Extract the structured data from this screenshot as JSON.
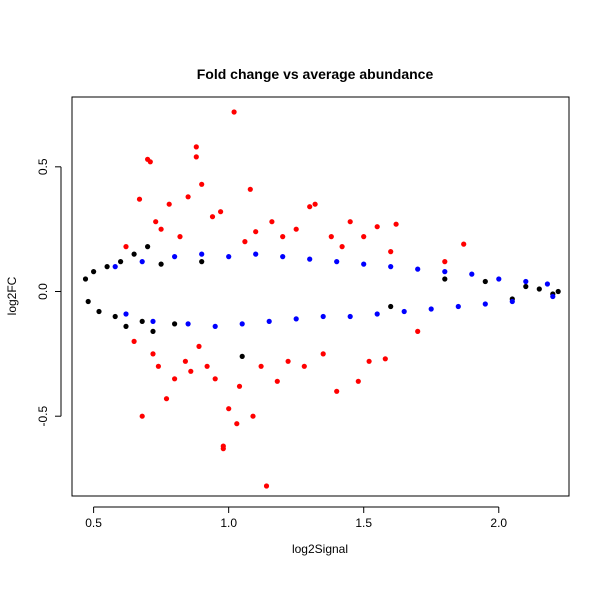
{
  "chart_data": {
    "type": "scatter",
    "title": "Fold change vs average abundance",
    "xlabel": "log2Signal",
    "ylabel": "log2FC",
    "xlim": [
      0.42,
      2.26
    ],
    "ylim": [
      -0.82,
      0.78
    ],
    "xticks": [
      0.5,
      1.0,
      1.5,
      2.0
    ],
    "xtick_labels": [
      "0.5",
      "1.0",
      "1.5",
      "2.0"
    ],
    "yticks": [
      -0.5,
      0.0,
      0.5
    ],
    "ytick_labels": [
      "-0.5",
      "0.0",
      "0.5"
    ],
    "grid": false,
    "series": [
      {
        "color": "#000000",
        "points": [
          [
            0.47,
            0.05
          ],
          [
            0.48,
            -0.04
          ],
          [
            0.5,
            0.08
          ],
          [
            0.52,
            -0.08
          ],
          [
            0.55,
            0.1
          ],
          [
            0.58,
            -0.1
          ],
          [
            0.6,
            0.12
          ],
          [
            0.62,
            -0.14
          ],
          [
            0.65,
            0.15
          ],
          [
            0.68,
            -0.12
          ],
          [
            0.7,
            0.18
          ],
          [
            0.72,
            -0.16
          ],
          [
            0.75,
            0.11
          ],
          [
            0.8,
            -0.13
          ],
          [
            0.9,
            0.12
          ],
          [
            1.05,
            -0.26
          ],
          [
            1.6,
            -0.06
          ],
          [
            1.8,
            0.05
          ],
          [
            1.95,
            0.04
          ],
          [
            2.05,
            -0.03
          ],
          [
            2.1,
            0.02
          ],
          [
            2.15,
            0.01
          ],
          [
            2.2,
            -0.01
          ],
          [
            2.22,
            0.0
          ]
        ]
      },
      {
        "color": "#0000ff",
        "points": [
          [
            0.58,
            0.1
          ],
          [
            0.62,
            -0.09
          ],
          [
            0.68,
            0.12
          ],
          [
            0.72,
            -0.12
          ],
          [
            0.8,
            0.14
          ],
          [
            0.85,
            -0.13
          ],
          [
            0.9,
            0.15
          ],
          [
            0.95,
            -0.14
          ],
          [
            1.0,
            0.14
          ],
          [
            1.05,
            -0.13
          ],
          [
            1.1,
            0.15
          ],
          [
            1.15,
            -0.12
          ],
          [
            1.2,
            0.14
          ],
          [
            1.25,
            -0.11
          ],
          [
            1.3,
            0.13
          ],
          [
            1.35,
            -0.1
          ],
          [
            1.4,
            0.12
          ],
          [
            1.45,
            -0.1
          ],
          [
            1.5,
            0.11
          ],
          [
            1.55,
            -0.09
          ],
          [
            1.6,
            0.1
          ],
          [
            1.65,
            -0.08
          ],
          [
            1.7,
            0.09
          ],
          [
            1.75,
            -0.07
          ],
          [
            1.8,
            0.08
          ],
          [
            1.85,
            -0.06
          ],
          [
            1.9,
            0.07
          ],
          [
            1.95,
            -0.05
          ],
          [
            2.0,
            0.05
          ],
          [
            2.05,
            -0.04
          ],
          [
            2.1,
            0.04
          ],
          [
            2.18,
            0.03
          ],
          [
            2.2,
            -0.02
          ]
        ]
      },
      {
        "color": "#ff0000",
        "points": [
          [
            0.62,
            0.18
          ],
          [
            0.65,
            -0.2
          ],
          [
            0.67,
            0.37
          ],
          [
            0.68,
            -0.5
          ],
          [
            0.7,
            0.53
          ],
          [
            0.71,
            0.52
          ],
          [
            0.72,
            -0.25
          ],
          [
            0.73,
            0.28
          ],
          [
            0.74,
            -0.3
          ],
          [
            0.75,
            0.25
          ],
          [
            0.77,
            -0.43
          ],
          [
            0.78,
            0.35
          ],
          [
            0.8,
            -0.35
          ],
          [
            0.82,
            0.22
          ],
          [
            0.84,
            -0.28
          ],
          [
            0.85,
            0.38
          ],
          [
            0.86,
            -0.32
          ],
          [
            0.88,
            0.54
          ],
          [
            0.88,
            0.58
          ],
          [
            0.89,
            -0.22
          ],
          [
            0.9,
            0.43
          ],
          [
            0.92,
            -0.3
          ],
          [
            0.94,
            0.3
          ],
          [
            0.95,
            -0.35
          ],
          [
            0.97,
            0.32
          ],
          [
            0.98,
            -0.63
          ],
          [
            0.98,
            -0.62
          ],
          [
            1.0,
            -0.47
          ],
          [
            1.02,
            0.72
          ],
          [
            1.03,
            -0.53
          ],
          [
            1.04,
            -0.38
          ],
          [
            1.06,
            0.2
          ],
          [
            1.08,
            0.41
          ],
          [
            1.09,
            -0.5
          ],
          [
            1.1,
            0.24
          ],
          [
            1.12,
            -0.3
          ],
          [
            1.14,
            -0.78
          ],
          [
            1.16,
            0.28
          ],
          [
            1.18,
            -0.36
          ],
          [
            1.2,
            0.22
          ],
          [
            1.22,
            -0.28
          ],
          [
            1.25,
            0.25
          ],
          [
            1.28,
            -0.3
          ],
          [
            1.3,
            0.34
          ],
          [
            1.32,
            0.35
          ],
          [
            1.35,
            -0.25
          ],
          [
            1.38,
            0.22
          ],
          [
            1.4,
            -0.4
          ],
          [
            1.42,
            0.18
          ],
          [
            1.45,
            0.28
          ],
          [
            1.48,
            -0.36
          ],
          [
            1.5,
            0.22
          ],
          [
            1.52,
            -0.28
          ],
          [
            1.55,
            0.26
          ],
          [
            1.58,
            -0.27
          ],
          [
            1.6,
            0.16
          ],
          [
            1.62,
            0.27
          ],
          [
            1.7,
            -0.16
          ],
          [
            1.8,
            0.12
          ],
          [
            1.87,
            0.19
          ]
        ]
      }
    ]
  }
}
